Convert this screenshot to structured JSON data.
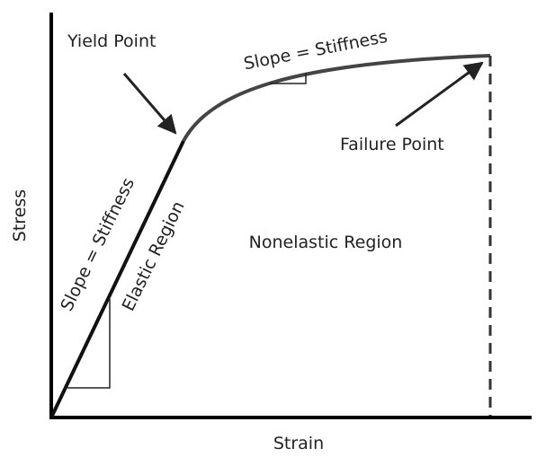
{
  "labels": {
    "yield_point": "Yield Point",
    "slope_top": "Slope = Stiffness",
    "failure_point": "Failure Point",
    "slope_elastic": "Slope = Stiffness",
    "elastic_region": "Elastic Region",
    "nonelastic_region": "Nonelastic Region",
    "y_axis": "Stress",
    "x_axis": "Strain"
  }
}
